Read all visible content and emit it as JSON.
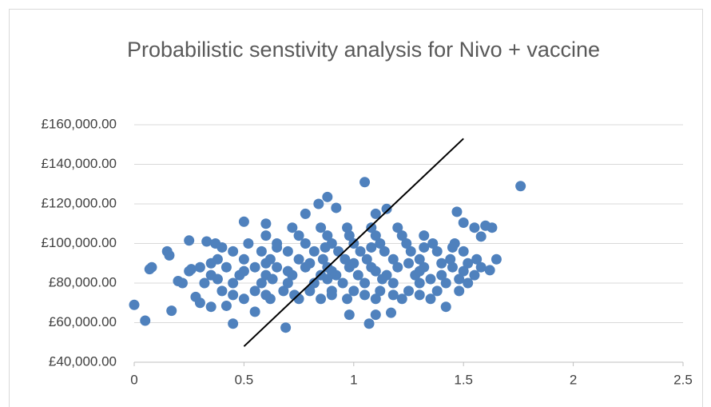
{
  "chart_data": {
    "type": "scatter",
    "title": "Probabilistic senstivity analysis for Nivo + vaccine",
    "xlim": [
      0,
      2.5
    ],
    "xticks": [
      0,
      0.5,
      1,
      1.5,
      2,
      2.5
    ],
    "ylim": [
      40000,
      160000
    ],
    "yticks": [
      {
        "value": 40000,
        "label": "£40,000.00"
      },
      {
        "value": 60000,
        "label": "£60,000.00"
      },
      {
        "value": 80000,
        "label": "£80,000.00"
      },
      {
        "value": 100000,
        "label": "£100,000.00"
      },
      {
        "value": 120000,
        "label": "£120,000.00"
      },
      {
        "value": 140000,
        "label": "£140,000.00"
      },
      {
        "value": 160000,
        "label": "£160,000.00"
      }
    ],
    "grid": true,
    "series": [
      {
        "color": "#4f81bd",
        "line": false,
        "x": [
          0,
          0.05,
          0.07,
          0.08,
          0.15,
          0.16,
          0.17,
          0.2,
          0.22,
          0.25,
          0.26,
          0.33,
          0.37,
          0.45,
          0.5,
          0.6,
          0.69,
          0.78,
          0.84,
          0.88,
          0.92,
          1.05,
          1.1,
          1.15,
          1.07,
          1.1,
          1.42,
          1.47,
          1.5,
          1.55,
          1.6,
          1.63,
          1.65,
          1.76,
          1.62,
          1.58,
          0.98,
          1.17,
          0.55,
          0.35,
          0.3,
          0.28,
          0.42,
          0.5,
          0.62,
          0.75,
          0.85,
          0.97,
          1.1,
          1.22,
          1.35,
          0.4,
          0.55,
          0.68,
          0.8,
          0.9,
          1.0,
          1.12,
          1.25,
          1.38,
          1.48,
          0.32,
          0.45,
          0.58,
          0.7,
          0.82,
          0.95,
          1.05,
          1.18,
          1.3,
          1.42,
          1.52,
          0.35,
          0.48,
          0.6,
          0.72,
          0.85,
          0.92,
          1.02,
          1.15,
          1.28,
          1.4,
          1.55,
          0.3,
          0.42,
          0.55,
          0.65,
          0.78,
          0.88,
          0.98,
          1.08,
          1.2,
          1.32,
          1.45,
          1.58,
          0.38,
          0.5,
          0.62,
          0.75,
          0.86,
          0.96,
          1.06,
          1.18,
          1.3,
          1.44,
          1.56,
          0.45,
          0.58,
          0.7,
          0.82,
          0.93,
          1.03,
          1.14,
          1.26,
          1.38,
          1.5,
          0.52,
          0.65,
          0.78,
          0.9,
          1.0,
          1.12,
          1.24,
          1.36,
          1.46,
          0.6,
          0.75,
          0.88,
          0.98,
          1.1,
          1.22,
          1.32,
          0.72,
          0.85,
          0.97,
          1.08,
          1.2,
          0.45,
          0.6,
          0.73,
          0.9,
          1.05,
          1.18,
          1.3,
          0.25,
          0.5,
          0.7,
          0.9,
          1.1,
          1.3,
          1.5,
          0.35,
          0.6,
          0.8,
          1.0,
          1.25,
          1.4,
          1.52,
          0.4,
          0.65,
          0.87,
          1.08,
          1.32,
          1.45,
          0.38,
          0.63,
          0.88,
          1.13,
          1.35,
          1.48
        ],
        "values": [
          69000,
          61000,
          87000,
          88000,
          96000,
          94000,
          66000,
          81000,
          80000,
          101500,
          87000,
          101000,
          100000,
          59500,
          111000,
          110000,
          57500,
          115000,
          120000,
          123500,
          118000,
          131000,
          115000,
          117500,
          59500,
          64000,
          68000,
          116000,
          110500,
          108000,
          109000,
          108000,
          92000,
          129000,
          86500,
          103500,
          64000,
          65000,
          65500,
          68000,
          70000,
          73000,
          68500,
          72000,
          72000,
          72000,
          72000,
          72000,
          72000,
          72000,
          72000,
          76000,
          76000,
          76000,
          76000,
          76000,
          76000,
          76000,
          76000,
          76000,
          76000,
          80000,
          80000,
          80000,
          80000,
          80000,
          80000,
          80000,
          80000,
          80000,
          80000,
          80000,
          84000,
          84000,
          84000,
          84000,
          84000,
          84000,
          84000,
          84000,
          84000,
          84000,
          84000,
          88000,
          88000,
          88000,
          88000,
          88000,
          88000,
          88000,
          88000,
          88000,
          88000,
          88000,
          88000,
          92000,
          92000,
          92000,
          92000,
          92000,
          92000,
          92000,
          92000,
          92000,
          92000,
          92000,
          96000,
          96000,
          96000,
          96000,
          96000,
          96000,
          96000,
          96000,
          96000,
          96000,
          100000,
          100000,
          100000,
          100000,
          100000,
          100000,
          100000,
          100000,
          100000,
          104000,
          104000,
          104000,
          104000,
          104000,
          104000,
          104000,
          108000,
          108000,
          108000,
          108000,
          108000,
          74000,
          74000,
          74000,
          74000,
          74000,
          74000,
          74000,
          86000,
          86000,
          86000,
          86000,
          86000,
          86000,
          86000,
          90000,
          90000,
          90000,
          90000,
          90000,
          90000,
          90000,
          98000,
          98000,
          98000,
          98000,
          98000,
          98000,
          82000,
          82000,
          82000,
          82000,
          82000,
          82000
        ]
      },
      {
        "color": "#000000",
        "line": true,
        "x": [
          0.5,
          1.5
        ],
        "values": [
          48000,
          153000
        ]
      }
    ]
  }
}
